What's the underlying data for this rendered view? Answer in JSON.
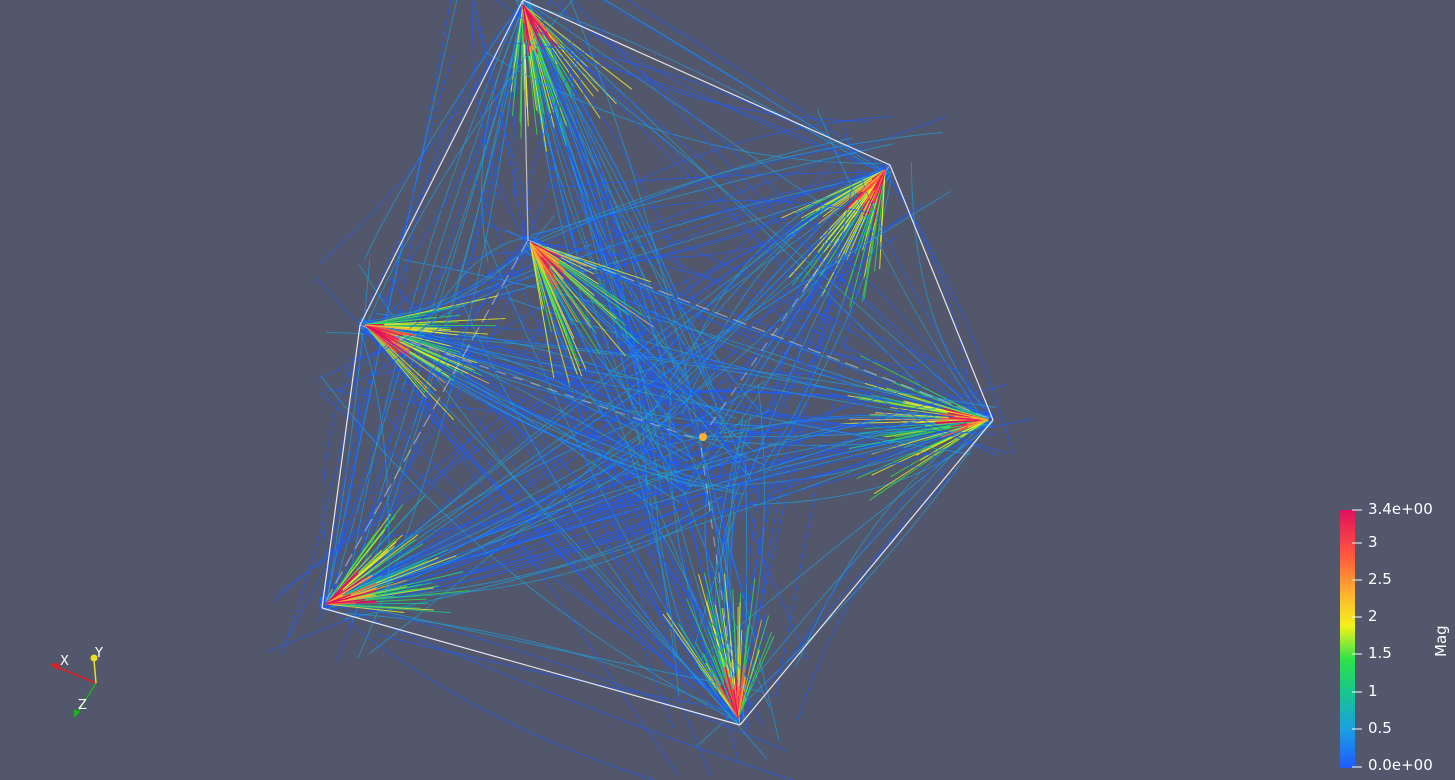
{
  "scene": {
    "background": "#52576b",
    "outline_color": "#e6e6ee",
    "colormap": [
      "#1e5bff",
      "#1aa0e0",
      "#16c88c",
      "#2ee24a",
      "#f2f21a",
      "#ffb030",
      "#ff5a3c",
      "#e0115f"
    ]
  },
  "color_legend": {
    "title": "Mag",
    "max_label": "3.4e+00",
    "min_label": "0.0e+00",
    "tick_labels": [
      "3",
      "2.5",
      "2",
      "1.5",
      "1",
      "0.5"
    ]
  },
  "orientation_axes": {
    "x_label": "X",
    "y_label": "Y",
    "z_label": "Z",
    "x_color": "#e02020",
    "y_color": "#e8e020",
    "z_color": "#20b020"
  }
}
